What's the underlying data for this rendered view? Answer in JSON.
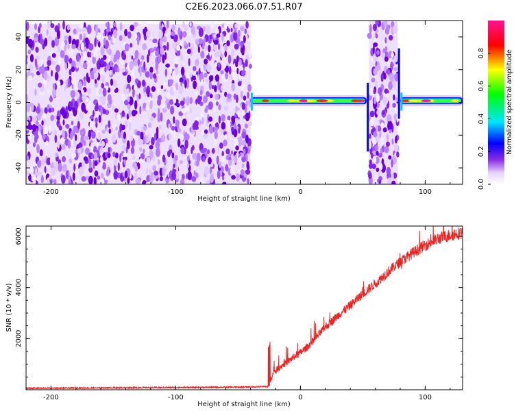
{
  "title": "C2E6.2023.066.07.51.R07",
  "chart_data": [
    {
      "type": "heatmap",
      "xlabel": "Height of straight line (km)",
      "ylabel": "Frequency (Hz)",
      "xlim": [
        -220,
        130
      ],
      "ylim": [
        -50,
        50
      ],
      "xticks": [
        -200,
        -100,
        0,
        100
      ],
      "yticks": [
        -40,
        -20,
        0,
        20,
        40
      ],
      "colorbar": {
        "label": "Normalized spectral amplitude",
        "range": [
          0.0,
          1.0
        ],
        "ticks": [
          "0.0",
          "0.2",
          "0.4",
          "0.6",
          "0.8"
        ],
        "ticks_values": [
          0.0,
          0.2,
          0.4,
          0.6,
          0.8
        ],
        "colors": [
          "#ffffff",
          "#e6d4ff",
          "#8a2be2",
          "#0000ff",
          "#00e5ff",
          "#00ff00",
          "#ffff00",
          "#ff0000",
          "#ff1493"
        ]
      },
      "regions": [
        {
          "name": "noise",
          "x_range": [
            -220,
            -40
          ],
          "f_range": [
            -50,
            48
          ],
          "amplitude": [
            0.0,
            0.15
          ]
        },
        {
          "name": "signal",
          "x_range": [
            -40,
            53
          ],
          "f_center": 1,
          "amplitude": [
            0.4,
            0.9
          ]
        },
        {
          "name": "noise-band",
          "x_range": [
            55,
            78
          ],
          "f_range": [
            -50,
            50
          ],
          "amplitude": [
            0.0,
            0.15
          ]
        },
        {
          "name": "signal",
          "x_range": [
            80,
            130
          ],
          "f_center": 1,
          "amplitude": [
            0.4,
            0.9
          ]
        }
      ]
    },
    {
      "type": "line",
      "xlabel": "Height of straight line (km)",
      "ylabel": "SNR (10 * v/v)",
      "xlim": [
        -220,
        130
      ],
      "ylim": [
        0,
        6400
      ],
      "xticks": [
        -200,
        -100,
        0,
        100
      ],
      "yticks": [
        2000,
        4000,
        6000
      ],
      "color": "#ee2222",
      "x": [
        -220,
        -180,
        -140,
        -100,
        -60,
        -40,
        -30,
        -25,
        -24,
        -22,
        -20,
        -15,
        -10,
        -5,
        0,
        5,
        10,
        20,
        30,
        40,
        50,
        60,
        70,
        80,
        90,
        100,
        110,
        120,
        130
      ],
      "y": [
        60,
        70,
        80,
        90,
        100,
        110,
        120,
        130,
        400,
        600,
        750,
        950,
        1100,
        1300,
        1450,
        1650,
        1900,
        2450,
        2900,
        3300,
        3750,
        4150,
        4600,
        5000,
        5350,
        5650,
        5900,
        6050,
        6150
      ]
    }
  ]
}
